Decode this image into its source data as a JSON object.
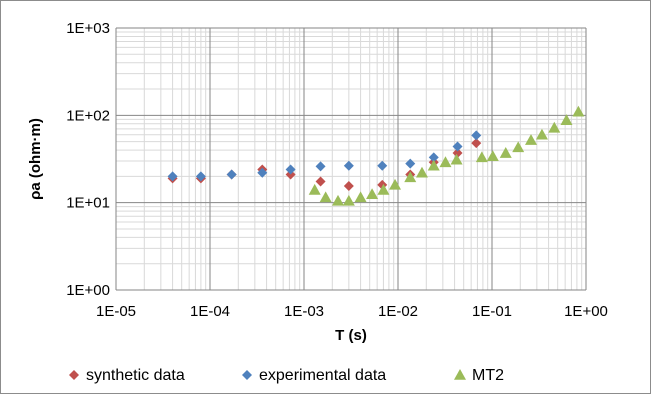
{
  "chart_data": {
    "type": "scatter",
    "title": "",
    "xlabel": "T (s)",
    "ylabel": "ρa (ohm·m)",
    "x_scale": "log",
    "y_scale": "log",
    "xlim": [
      1e-05,
      1
    ],
    "ylim": [
      1,
      1000
    ],
    "x_tick_values": [
      1e-05,
      0.0001,
      0.001,
      0.01,
      0.1,
      1
    ],
    "x_tick_labels": [
      "1E-05",
      "1E-04",
      "1E-03",
      "1E-02",
      "1E-01",
      "1E+00"
    ],
    "y_tick_values": [
      1,
      10,
      100,
      1000
    ],
    "y_tick_labels": [
      "1E+00",
      "1E+01",
      "1E+02",
      "1E+03"
    ],
    "grid": true,
    "minor_grid": true,
    "legend_position": "bottom",
    "series": [
      {
        "name": "synthetic data",
        "marker": "diamond",
        "color": "#C0504D",
        "x": [
          4e-05,
          8e-05,
          0.00017,
          0.00036,
          0.00072,
          0.0015,
          0.003,
          0.0068,
          0.0135,
          0.024,
          0.043,
          0.068
        ],
        "y": [
          19,
          19,
          21,
          24,
          21,
          17.5,
          15.5,
          16,
          21,
          29,
          37,
          48
        ]
      },
      {
        "name": "experimental data",
        "marker": "diamond",
        "color": "#4F81BD",
        "x": [
          4e-05,
          8e-05,
          0.00017,
          0.00036,
          0.00072,
          0.0015,
          0.003,
          0.0068,
          0.0135,
          0.024,
          0.043,
          0.068
        ],
        "y": [
          20,
          20,
          21,
          22,
          24,
          26,
          26.5,
          26.5,
          28,
          33,
          44,
          59
        ]
      },
      {
        "name": "MT2",
        "marker": "triangle",
        "color": "#9BBB59",
        "x": [
          0.0013,
          0.0017,
          0.0023,
          0.003,
          0.004,
          0.0053,
          0.007,
          0.0093,
          0.0135,
          0.018,
          0.024,
          0.032,
          0.042,
          0.078,
          0.102,
          0.14,
          0.19,
          0.26,
          0.34,
          0.46,
          0.62,
          0.83
        ],
        "y": [
          14,
          11.5,
          10.5,
          10.5,
          11.5,
          12.5,
          14,
          16,
          19.5,
          22,
          26.5,
          29,
          31,
          33,
          34,
          37,
          43,
          52,
          60,
          72,
          88,
          110
        ]
      }
    ]
  }
}
